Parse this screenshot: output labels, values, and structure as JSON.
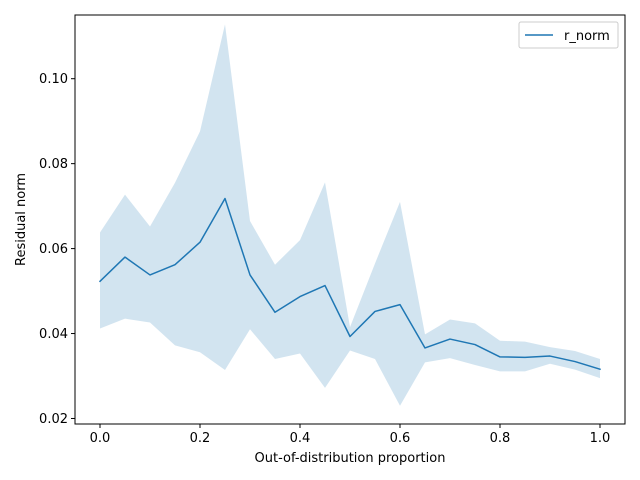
{
  "chart_data": {
    "type": "line",
    "title": "",
    "xlabel": "Out-of-distribution proportion",
    "ylabel": "Residual norm",
    "xlim": [
      -0.05,
      1.05
    ],
    "ylim": [
      0.0187,
      0.115
    ],
    "xticks": [
      0.0,
      0.2,
      0.4,
      0.6,
      0.8,
      1.0
    ],
    "xtick_labels": [
      "0.0",
      "0.2",
      "0.4",
      "0.6",
      "0.8",
      "1.0"
    ],
    "yticks": [
      0.02,
      0.04,
      0.06,
      0.08,
      0.1
    ],
    "ytick_labels": [
      "0.02",
      "0.04",
      "0.06",
      "0.08",
      "0.10"
    ],
    "grid": false,
    "legend_position": "top-right",
    "series": [
      {
        "name": "r_norm",
        "color": "#1f77b4",
        "band_color": "#1f77b4",
        "x": [
          0.0,
          0.05,
          0.1,
          0.15,
          0.2,
          0.25,
          0.3,
          0.35,
          0.4,
          0.45,
          0.5,
          0.55,
          0.6,
          0.65,
          0.7,
          0.75,
          0.8,
          0.85,
          0.9,
          0.95,
          1.0
        ],
        "y": [
          0.0523,
          0.058,
          0.0538,
          0.0562,
          0.0615,
          0.0718,
          0.0538,
          0.045,
          0.0487,
          0.0513,
          0.0393,
          0.0452,
          0.0468,
          0.0366,
          0.0387,
          0.0374,
          0.0345,
          0.0344,
          0.0347,
          0.0334,
          0.0316
        ],
        "lower": [
          0.0412,
          0.0435,
          0.0426,
          0.0372,
          0.0356,
          0.0314,
          0.041,
          0.034,
          0.0353,
          0.0272,
          0.036,
          0.034,
          0.023,
          0.0332,
          0.0342,
          0.0326,
          0.0311,
          0.0311,
          0.0329,
          0.0315,
          0.0295
        ],
        "upper": [
          0.0638,
          0.0727,
          0.0652,
          0.0755,
          0.0876,
          0.1128,
          0.0665,
          0.0562,
          0.062,
          0.0756,
          0.0415,
          0.0565,
          0.071,
          0.0398,
          0.0433,
          0.0424,
          0.0383,
          0.0381,
          0.0368,
          0.0359,
          0.034
        ]
      }
    ]
  }
}
